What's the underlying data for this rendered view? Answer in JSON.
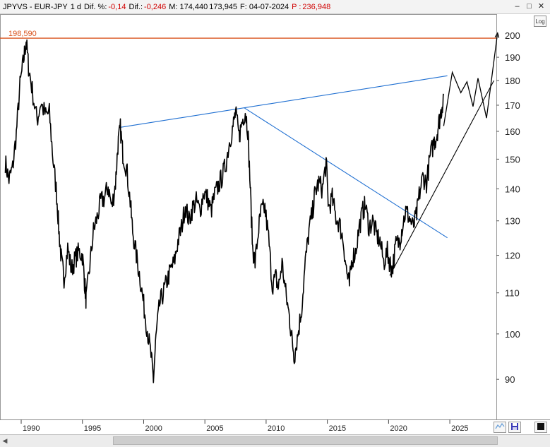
{
  "header": {
    "symbol": "JPYVS - EUR-JPY",
    "period": "1 d",
    "dif_pct_label": "Dif. %:",
    "dif_pct_value": "-0,14",
    "dif_label": "Dif.:",
    "dif_value": "-0,246",
    "m_label": "M: 174,440",
    "m2_value": "173,945",
    "f_label": "F: 04-07-2024",
    "p_label": "P :",
    "p_value": "236,948"
  },
  "controls": {
    "minimize": "–",
    "restore": "□",
    "close": "✕",
    "log_label": "Log"
  },
  "colors": {
    "price": "#000000",
    "trendline_blue": "#1f6fd1",
    "hline": "#d9531e",
    "hline_label": "#d9531e"
  },
  "chart_data": {
    "type": "line",
    "yscale": "log",
    "ylim": [
      82,
      210
    ],
    "xlim": [
      1988.5,
      2028.8
    ],
    "yticks": [
      90,
      100,
      110,
      120,
      130,
      140,
      150,
      160,
      170,
      180,
      190,
      200
    ],
    "xticks": [
      1990,
      1995,
      2000,
      2005,
      2010,
      2015,
      2020,
      2025
    ],
    "hline": {
      "value": 198.59,
      "label": "198,590"
    },
    "series": [
      {
        "name": "EUR-JPY",
        "points": [
          [
            1988.7,
            149
          ],
          [
            1989.0,
            143
          ],
          [
            1989.3,
            147
          ],
          [
            1989.6,
            159
          ],
          [
            1989.9,
            178
          ],
          [
            1990.2,
            189
          ],
          [
            1990.4,
            197.5
          ],
          [
            1990.6,
            186
          ],
          [
            1990.9,
            176
          ],
          [
            1991.3,
            164
          ],
          [
            1991.6,
            171
          ],
          [
            1992.0,
            166
          ],
          [
            1992.3,
            167
          ],
          [
            1992.6,
            150
          ],
          [
            1992.9,
            138
          ],
          [
            1993.1,
            126
          ],
          [
            1993.3,
            118
          ],
          [
            1993.5,
            114
          ],
          [
            1993.8,
            122
          ],
          [
            1994.1,
            116
          ],
          [
            1994.4,
            119
          ],
          [
            1994.7,
            121
          ],
          [
            1995.0,
            120
          ],
          [
            1995.2,
            112
          ],
          [
            1995.3,
            108
          ],
          [
            1995.6,
            117
          ],
          [
            1995.9,
            127
          ],
          [
            1996.2,
            131
          ],
          [
            1996.5,
            136
          ],
          [
            1996.8,
            137
          ],
          [
            1997.1,
            141
          ],
          [
            1997.4,
            134
          ],
          [
            1997.7,
            142
          ],
          [
            1997.9,
            155
          ],
          [
            1998.1,
            161
          ],
          [
            1998.3,
            152
          ],
          [
            1998.6,
            147
          ],
          [
            1998.9,
            136
          ],
          [
            1999.1,
            127
          ],
          [
            1999.4,
            120
          ],
          [
            1999.7,
            114
          ],
          [
            2000.0,
            107
          ],
          [
            2000.3,
            101
          ],
          [
            2000.6,
            95
          ],
          [
            2000.8,
            90
          ],
          [
            2001.0,
            99
          ],
          [
            2001.3,
            107
          ],
          [
            2001.6,
            110
          ],
          [
            2001.9,
            113
          ],
          [
            2002.2,
            116
          ],
          [
            2002.5,
            118
          ],
          [
            2002.8,
            124
          ],
          [
            2003.1,
            128
          ],
          [
            2003.4,
            135
          ],
          [
            2003.7,
            130
          ],
          [
            2004.0,
            134
          ],
          [
            2004.3,
            136
          ],
          [
            2004.6,
            133
          ],
          [
            2004.9,
            139
          ],
          [
            2005.2,
            137
          ],
          [
            2005.5,
            133
          ],
          [
            2005.8,
            138
          ],
          [
            2006.1,
            141
          ],
          [
            2006.4,
            144
          ],
          [
            2006.7,
            148
          ],
          [
            2007.0,
            156
          ],
          [
            2007.3,
            162
          ],
          [
            2007.5,
            167
          ],
          [
            2007.8,
            158
          ],
          [
            2008.0,
            163
          ],
          [
            2008.3,
            168
          ],
          [
            2008.5,
            161
          ],
          [
            2008.7,
            141
          ],
          [
            2008.9,
            122
          ],
          [
            2009.1,
            118
          ],
          [
            2009.4,
            128
          ],
          [
            2009.6,
            133
          ],
          [
            2009.9,
            134
          ],
          [
            2010.2,
            125
          ],
          [
            2010.5,
            112
          ],
          [
            2010.8,
            114
          ],
          [
            2011.0,
            111
          ],
          [
            2011.3,
            118
          ],
          [
            2011.6,
            110
          ],
          [
            2011.9,
            104
          ],
          [
            2012.1,
            99
          ],
          [
            2012.3,
            95
          ],
          [
            2012.6,
            100
          ],
          [
            2012.9,
            106
          ],
          [
            2013.2,
            118
          ],
          [
            2013.5,
            127
          ],
          [
            2013.8,
            133
          ],
          [
            2014.0,
            139
          ],
          [
            2014.3,
            142
          ],
          [
            2014.6,
            140
          ],
          [
            2014.9,
            149
          ],
          [
            2015.1,
            134
          ],
          [
            2015.4,
            137
          ],
          [
            2015.7,
            131
          ],
          [
            2016.0,
            129
          ],
          [
            2016.3,
            124
          ],
          [
            2016.6,
            115
          ],
          [
            2016.8,
            112
          ],
          [
            2017.0,
            119
          ],
          [
            2017.3,
            121
          ],
          [
            2017.6,
            128
          ],
          [
            2017.9,
            133
          ],
          [
            2018.1,
            135
          ],
          [
            2018.4,
            128
          ],
          [
            2018.7,
            130
          ],
          [
            2019.0,
            126
          ],
          [
            2019.3,
            124
          ],
          [
            2019.6,
            118
          ],
          [
            2019.9,
            121
          ],
          [
            2020.1,
            118
          ],
          [
            2020.3,
            116
          ],
          [
            2020.6,
            123
          ],
          [
            2020.9,
            124
          ],
          [
            2021.1,
            128
          ],
          [
            2021.4,
            133
          ],
          [
            2021.7,
            131
          ],
          [
            2022.0,
            128
          ],
          [
            2022.3,
            132
          ],
          [
            2022.5,
            138
          ],
          [
            2022.8,
            144
          ],
          [
            2023.1,
            142
          ],
          [
            2023.4,
            151
          ],
          [
            2023.7,
            156
          ],
          [
            2023.9,
            158
          ],
          [
            2024.1,
            163
          ],
          [
            2024.3,
            168
          ],
          [
            2024.5,
            174
          ]
        ]
      }
    ],
    "trendlines": [
      {
        "color": "blue",
        "from": [
          1998.1,
          161.5
        ],
        "to": [
          2024.8,
          182
        ]
      },
      {
        "color": "blue",
        "from": [
          2008.2,
          169
        ],
        "to": [
          2024.8,
          125
        ]
      },
      {
        "color": "black",
        "from": [
          2020.1,
          114.5
        ],
        "to": [
          2028.6,
          180
        ]
      }
    ],
    "projection": {
      "points": [
        [
          2024.5,
          162
        ],
        [
          2025.2,
          183.5
        ],
        [
          2025.9,
          175
        ],
        [
          2026.4,
          179.5
        ],
        [
          2026.9,
          169.5
        ],
        [
          2027.3,
          181
        ],
        [
          2028.0,
          165
        ],
        [
          2028.9,
          201
        ]
      ]
    }
  }
}
